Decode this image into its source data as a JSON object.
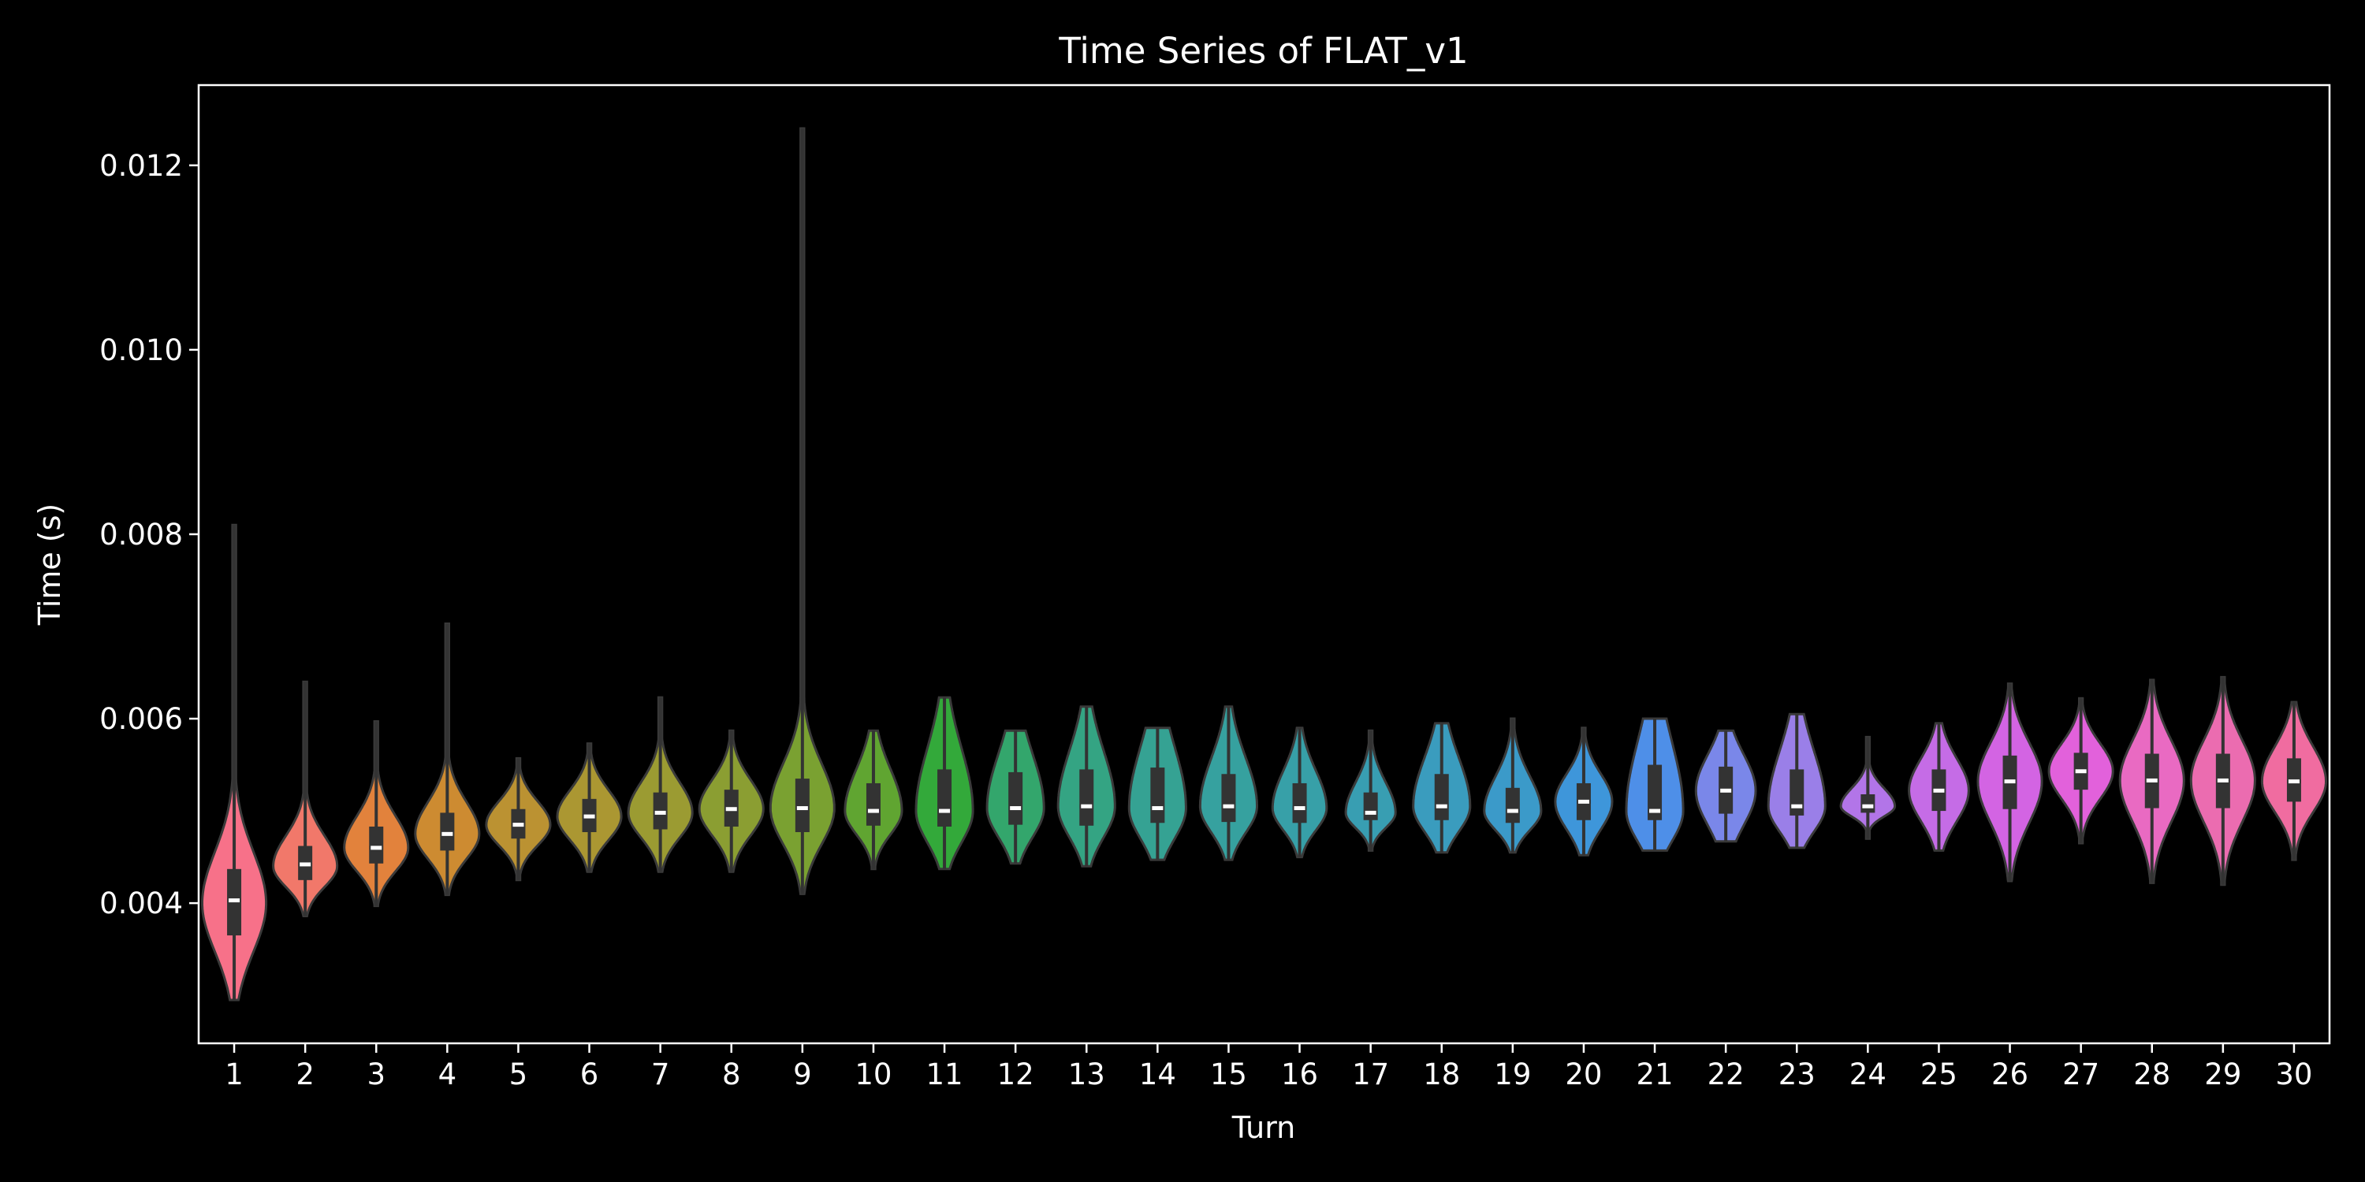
{
  "chart_data": {
    "type": "violin",
    "title": "Time Series of FLAT_v1",
    "xlabel": "Turn",
    "ylabel": "Time (s)",
    "ylim": [
      0.00248,
      0.01287
    ],
    "y_ticks": [
      0.004,
      0.006,
      0.008,
      0.01,
      0.012
    ],
    "y_tick_labels": [
      "0.004",
      "0.006",
      "0.008",
      "0.010",
      "0.012"
    ],
    "grid": false,
    "theme": {
      "background": "#000000",
      "axes_edge": "#ffffff",
      "violin_edge": "#3a3a3a",
      "box": "#333333",
      "median": "#ffffff"
    },
    "categories": [
      "1",
      "2",
      "3",
      "4",
      "5",
      "6",
      "7",
      "8",
      "9",
      "10",
      "11",
      "12",
      "13",
      "14",
      "15",
      "16",
      "17",
      "18",
      "19",
      "20",
      "21",
      "22",
      "23",
      "24",
      "25",
      "26",
      "27",
      "28",
      "29",
      "30"
    ],
    "series": [
      {
        "median": 0.00403,
        "q1": 0.00365,
        "q3": 0.00437,
        "min": 0.00295,
        "max": 0.0081,
        "kde_min": 0.00295,
        "kde_max": 0.0081,
        "hw": 0.45,
        "peak": 0.004,
        "color": "#f77189"
      },
      {
        "median": 0.00442,
        "q1": 0.00425,
        "q3": 0.00462,
        "min": 0.00386,
        "max": 0.0064,
        "kde_min": 0.00386,
        "kde_max": 0.0064,
        "hw": 0.45,
        "peak": 0.0044,
        "color": "#f1786a"
      },
      {
        "median": 0.0046,
        "q1": 0.00443,
        "q3": 0.00483,
        "min": 0.00397,
        "max": 0.00597,
        "kde_min": 0.00397,
        "kde_max": 0.00597,
        "hw": 0.45,
        "peak": 0.0046,
        "color": "#e2823c"
      },
      {
        "median": 0.00475,
        "q1": 0.00457,
        "q3": 0.00498,
        "min": 0.00409,
        "max": 0.00703,
        "kde_min": 0.00409,
        "kde_max": 0.00703,
        "hw": 0.45,
        "peak": 0.00475,
        "color": "#cd8b31"
      },
      {
        "median": 0.00485,
        "q1": 0.0047,
        "q3": 0.00502,
        "min": 0.00425,
        "max": 0.00557,
        "kde_min": 0.00425,
        "kde_max": 0.00557,
        "hw": 0.45,
        "peak": 0.00485,
        "color": "#bb9232"
      },
      {
        "median": 0.00494,
        "q1": 0.00477,
        "q3": 0.00513,
        "min": 0.00434,
        "max": 0.00573,
        "kde_min": 0.00434,
        "kde_max": 0.00573,
        "hw": 0.45,
        "peak": 0.00494,
        "color": "#ab9732"
      },
      {
        "median": 0.00498,
        "q1": 0.0048,
        "q3": 0.0052,
        "min": 0.00434,
        "max": 0.00623,
        "kde_min": 0.00434,
        "kde_max": 0.00623,
        "hw": 0.45,
        "peak": 0.00498,
        "color": "#9b9b32"
      },
      {
        "median": 0.00502,
        "q1": 0.00483,
        "q3": 0.00523,
        "min": 0.00434,
        "max": 0.00587,
        "kde_min": 0.00434,
        "kde_max": 0.00587,
        "hw": 0.45,
        "peak": 0.00502,
        "color": "#8b9e32"
      },
      {
        "median": 0.00503,
        "q1": 0.00477,
        "q3": 0.00535,
        "min": 0.0041,
        "max": 0.0124,
        "kde_min": 0.0041,
        "kde_max": 0.0124,
        "hw": 0.45,
        "peak": 0.00503,
        "color": "#7aa131"
      },
      {
        "median": 0.005,
        "q1": 0.00484,
        "q3": 0.0053,
        "min": 0.00437,
        "max": 0.00587,
        "kde_min": 0.00437,
        "kde_max": 0.00587,
        "hw": 0.4,
        "peak": 0.005,
        "color": "#60a531"
      },
      {
        "median": 0.005,
        "q1": 0.00483,
        "q3": 0.00545,
        "min": 0.00437,
        "max": 0.00623,
        "kde_min": 0.00437,
        "kde_max": 0.00623,
        "hw": 0.4,
        "peak": 0.005,
        "color": "#33a93a"
      },
      {
        "median": 0.00503,
        "q1": 0.00485,
        "q3": 0.00542,
        "min": 0.00443,
        "max": 0.00587,
        "kde_min": 0.00443,
        "kde_max": 0.00587,
        "hw": 0.4,
        "peak": 0.00503,
        "color": "#33a66c"
      },
      {
        "median": 0.00505,
        "q1": 0.00484,
        "q3": 0.00545,
        "min": 0.0044,
        "max": 0.00613,
        "kde_min": 0.0044,
        "kde_max": 0.00613,
        "hw": 0.4,
        "peak": 0.00505,
        "color": "#34a483"
      },
      {
        "median": 0.00503,
        "q1": 0.00487,
        "q3": 0.00547,
        "min": 0.00447,
        "max": 0.0059,
        "kde_min": 0.00447,
        "kde_max": 0.0059,
        "hw": 0.4,
        "peak": 0.00503,
        "color": "#35a293"
      },
      {
        "median": 0.00505,
        "q1": 0.00488,
        "q3": 0.0054,
        "min": 0.00447,
        "max": 0.00613,
        "kde_min": 0.00447,
        "kde_max": 0.00613,
        "hw": 0.4,
        "peak": 0.00505,
        "color": "#36a19f"
      },
      {
        "median": 0.00503,
        "q1": 0.00487,
        "q3": 0.0053,
        "min": 0.0045,
        "max": 0.0059,
        "kde_min": 0.0045,
        "kde_max": 0.0059,
        "hw": 0.38,
        "peak": 0.00503,
        "color": "#37a0a8"
      },
      {
        "median": 0.00498,
        "q1": 0.0049,
        "q3": 0.0052,
        "min": 0.00457,
        "max": 0.00587,
        "kde_min": 0.00457,
        "kde_max": 0.00587,
        "hw": 0.35,
        "peak": 0.00498,
        "color": "#389eb2"
      },
      {
        "median": 0.00505,
        "q1": 0.0049,
        "q3": 0.0054,
        "min": 0.00455,
        "max": 0.00595,
        "kde_min": 0.00455,
        "kde_max": 0.00595,
        "hw": 0.4,
        "peak": 0.00505,
        "color": "#3a9cbe"
      },
      {
        "median": 0.005,
        "q1": 0.00487,
        "q3": 0.00525,
        "min": 0.00455,
        "max": 0.006,
        "kde_min": 0.00455,
        "kde_max": 0.006,
        "hw": 0.4,
        "peak": 0.005,
        "color": "#3b9ac9"
      },
      {
        "median": 0.0051,
        "q1": 0.0049,
        "q3": 0.0053,
        "min": 0.00452,
        "max": 0.0059,
        "kde_min": 0.00452,
        "kde_max": 0.0059,
        "hw": 0.4,
        "peak": 0.0051,
        "color": "#3e96da"
      },
      {
        "median": 0.005,
        "q1": 0.0049,
        "q3": 0.0055,
        "min": 0.00457,
        "max": 0.006,
        "kde_min": 0.00457,
        "kde_max": 0.006,
        "hw": 0.4,
        "peak": 0.005,
        "color": "#4e8fe8"
      },
      {
        "median": 0.00522,
        "q1": 0.00497,
        "q3": 0.00548,
        "min": 0.00467,
        "max": 0.00587,
        "kde_min": 0.00467,
        "kde_max": 0.00587,
        "hw": 0.42,
        "peak": 0.00522,
        "color": "#7a87e9"
      },
      {
        "median": 0.00505,
        "q1": 0.00495,
        "q3": 0.00545,
        "min": 0.0046,
        "max": 0.00605,
        "kde_min": 0.0046,
        "kde_max": 0.00605,
        "hw": 0.4,
        "peak": 0.00505,
        "color": "#9a7fe8"
      },
      {
        "median": 0.00505,
        "q1": 0.00498,
        "q3": 0.00518,
        "min": 0.0047,
        "max": 0.0058,
        "kde_min": 0.0047,
        "kde_max": 0.0058,
        "hw": 0.38,
        "peak": 0.00505,
        "color": "#b275e8"
      },
      {
        "median": 0.00522,
        "q1": 0.005,
        "q3": 0.00545,
        "min": 0.00457,
        "max": 0.00595,
        "kde_min": 0.00457,
        "kde_max": 0.00595,
        "hw": 0.42,
        "peak": 0.00522,
        "color": "#c56ce6"
      },
      {
        "median": 0.00532,
        "q1": 0.00502,
        "q3": 0.0056,
        "min": 0.00424,
        "max": 0.00638,
        "kde_min": 0.00424,
        "kde_max": 0.00638,
        "hw": 0.45,
        "peak": 0.00532,
        "color": "#d364e3"
      },
      {
        "median": 0.00543,
        "q1": 0.00523,
        "q3": 0.00563,
        "min": 0.00465,
        "max": 0.00622,
        "kde_min": 0.00465,
        "kde_max": 0.00622,
        "hw": 0.45,
        "peak": 0.00543,
        "color": "#e261db"
      },
      {
        "median": 0.00533,
        "q1": 0.00503,
        "q3": 0.00562,
        "min": 0.00422,
        "max": 0.00642,
        "kde_min": 0.00422,
        "kde_max": 0.00642,
        "hw": 0.45,
        "peak": 0.00533,
        "color": "#e96ac2"
      },
      {
        "median": 0.00533,
        "q1": 0.00503,
        "q3": 0.00562,
        "min": 0.0042,
        "max": 0.00645,
        "kde_min": 0.0042,
        "kde_max": 0.00645,
        "hw": 0.45,
        "peak": 0.00533,
        "color": "#eb6cb0"
      },
      {
        "median": 0.00532,
        "q1": 0.0051,
        "q3": 0.00557,
        "min": 0.00447,
        "max": 0.00618,
        "kde_min": 0.00447,
        "kde_max": 0.00618,
        "hw": 0.45,
        "peak": 0.00532,
        "color": "#f06ca0"
      }
    ]
  }
}
